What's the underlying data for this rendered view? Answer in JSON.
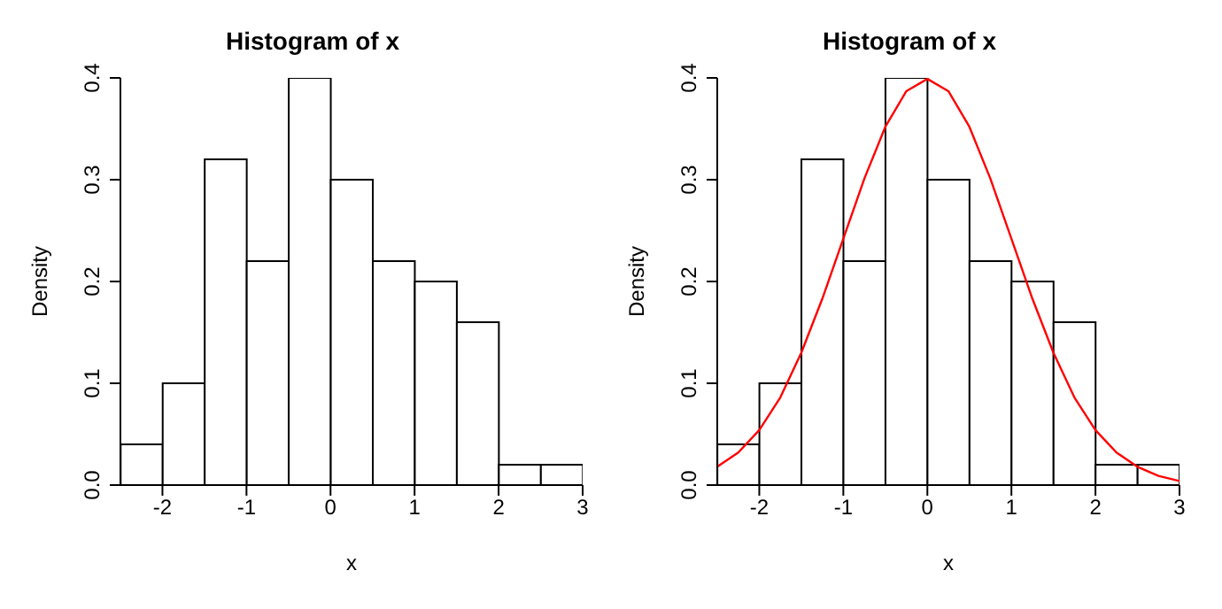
{
  "chart_data": [
    {
      "type": "histogram",
      "title": "Histogram of x",
      "xlabel": "x",
      "ylabel": "Density",
      "bins": [
        -2.5,
        -2,
        -1.5,
        -1,
        -0.5,
        0,
        0.5,
        1,
        1.5,
        2,
        2.5,
        3
      ],
      "values": [
        0.04,
        0.1,
        0.32,
        0.22,
        0.4,
        0.3,
        0.22,
        0.2,
        0.16,
        0.02,
        0.02
      ],
      "color": "#ffffff",
      "xlim": [
        -2.5,
        3
      ],
      "xticks": [
        -2,
        -1,
        0,
        1,
        2,
        3
      ],
      "ylim": [
        0,
        0.4
      ],
      "yticks": [
        {
          "value": 0,
          "label": "0.0"
        },
        0.1,
        0.2,
        0.3,
        0.4
      ],
      "grid": false,
      "legend": false
    },
    {
      "type": "histogram",
      "title": "Histogram of x",
      "xlabel": "x",
      "ylabel": "Density",
      "bins": [
        -2.5,
        -2,
        -1.5,
        -1,
        -0.5,
        0,
        0.5,
        1,
        1.5,
        2,
        2.5,
        3
      ],
      "values": [
        0.04,
        0.1,
        0.32,
        0.22,
        0.4,
        0.3,
        0.22,
        0.2,
        0.16,
        0.02,
        0.02
      ],
      "color": "#ffffff",
      "xlim": [
        -2.5,
        3
      ],
      "xticks": [
        -2,
        -1,
        0,
        1,
        2,
        3
      ],
      "ylim": [
        0,
        0.4
      ],
      "yticks": [
        {
          "value": 0,
          "label": "0.0"
        },
        0.1,
        0.2,
        0.3,
        0.4
      ],
      "grid": false,
      "legend": false,
      "series": [
        {
          "type": "line",
          "color": "#ff0000",
          "x": [
            -2.5,
            -2.25,
            -2,
            -1.75,
            -1.5,
            -1.25,
            -1,
            -0.75,
            -0.5,
            -0.25,
            0,
            0.25,
            0.5,
            0.75,
            1,
            1.25,
            1.5,
            1.75,
            2,
            2.25,
            2.5,
            2.75,
            3
          ],
          "values": [
            0.018,
            0.032,
            0.054,
            0.086,
            0.13,
            0.183,
            0.242,
            0.301,
            0.352,
            0.387,
            0.399,
            0.387,
            0.352,
            0.301,
            0.242,
            0.183,
            0.13,
            0.086,
            0.054,
            0.032,
            0.018,
            0.009,
            0.004
          ]
        }
      ]
    }
  ]
}
